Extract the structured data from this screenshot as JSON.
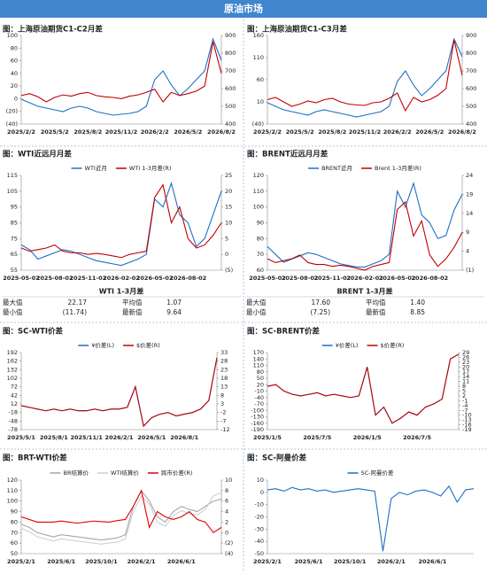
{
  "header": {
    "title": "原油市场"
  },
  "chart_data": [
    {
      "type": "line",
      "title": "图：上海原油期货C1-C2月差",
      "categories": [
        "2025/2/2",
        null,
        null,
        null,
        "2025/5/2",
        null,
        null,
        null,
        "2025/8/2",
        null,
        null,
        null,
        "2025/11/2",
        null,
        null,
        null,
        "2026/2/2",
        null,
        null,
        null,
        "2026/5/2",
        null,
        null,
        null,
        "2026/8/2"
      ],
      "ylim": [
        -40,
        100
      ],
      "yticks": [
        {
          "value": -40,
          "label": "(40)"
        },
        {
          "value": -20,
          "label": "(20)"
        },
        0,
        20,
        40,
        60,
        80,
        100
      ],
      "y2lim": [
        400,
        900
      ],
      "y2ticks": [
        400,
        500,
        600,
        700,
        800,
        900
      ],
      "series": [
        {
          "color": "#1f6fc5",
          "axis": "y2",
          "values": [
            540,
            520,
            500,
            490,
            480,
            470,
            490,
            500,
            490,
            470,
            460,
            450,
            455,
            460,
            470,
            500,
            650,
            700,
            620,
            560,
            600,
            650,
            700,
            880,
            760
          ]
        },
        {
          "color": "#c00000",
          "values": [
            5,
            8,
            3,
            -5,
            2,
            6,
            4,
            8,
            10,
            5,
            3,
            2,
            0,
            4,
            6,
            10,
            15,
            -5,
            10,
            5,
            8,
            12,
            20,
            90,
            40
          ]
        }
      ]
    },
    {
      "type": "line",
      "title": "图：上海原油期货C1-C3月差",
      "categories": [
        "2025/2/2",
        null,
        null,
        null,
        "2025/5/2",
        null,
        null,
        null,
        "2025/8/2",
        null,
        null,
        null,
        "2025/11/2",
        null,
        null,
        null,
        "2026/2/2",
        null,
        null,
        null,
        "2026/5/2",
        null,
        null,
        null,
        "2026/8/2"
      ],
      "ylim": [
        -40,
        160
      ],
      "yticks": [
        {
          "value": -40,
          "label": "(40)"
        },
        10,
        60,
        110,
        160
      ],
      "y2lim": [
        400,
        900
      ],
      "y2ticks": [
        400,
        500,
        600,
        700,
        800,
        900
      ],
      "series": [
        {
          "color": "#1f6fc5",
          "axis": "y2",
          "values": [
            520,
            500,
            480,
            470,
            460,
            450,
            470,
            480,
            470,
            460,
            450,
            440,
            450,
            460,
            470,
            500,
            640,
            700,
            620,
            560,
            600,
            650,
            700,
            880,
            780
          ]
        },
        {
          "color": "#c00000",
          "values": [
            15,
            20,
            10,
            0,
            5,
            12,
            8,
            15,
            18,
            10,
            5,
            3,
            2,
            8,
            10,
            18,
            30,
            -10,
            20,
            10,
            15,
            25,
            40,
            150,
            70
          ]
        }
      ]
    },
    {
      "type": "line",
      "title": "图：WTI近远月月差",
      "categories": [
        "2025-05-02",
        null,
        null,
        null,
        "2025-08-02",
        null,
        null,
        null,
        "2025-11-02",
        null,
        null,
        null,
        "2026-02-02",
        null,
        null,
        null,
        "2026-05-02",
        null,
        null,
        null,
        "2026-08-02",
        null,
        null,
        null,
        null
      ],
      "ylim": [
        55,
        115
      ],
      "yticks": [
        55,
        65,
        75,
        85,
        95,
        105,
        115
      ],
      "y2lim": [
        -5,
        25
      ],
      "y2ticks": [
        {
          "value": -5,
          "label": "(5)"
        },
        0,
        5,
        10,
        15,
        20,
        25
      ],
      "series": [
        {
          "name": "WTI近月",
          "color": "#1f6fc5",
          "values": [
            71,
            68,
            62,
            64,
            66,
            68,
            67,
            65,
            63,
            61,
            60,
            59,
            58,
            60,
            62,
            65,
            100,
            95,
            110,
            90,
            85,
            70,
            75,
            90,
            105
          ]
        },
        {
          "name": "WTI 1-3月差(R)",
          "color": "#c00000",
          "axis": "y2",
          "values": [
            2,
            1,
            1.5,
            2,
            3,
            1,
            0.5,
            0.5,
            0,
            0.3,
            0,
            -0.5,
            -1,
            0,
            0.5,
            1,
            18,
            22,
            10,
            15,
            5,
            2,
            3,
            6,
            10
          ]
        }
      ]
    },
    {
      "type": "line",
      "title": "图：BRENT近远月月差",
      "categories": [
        "2025-05-02",
        null,
        null,
        null,
        "2025-08-02",
        null,
        null,
        null,
        "2025-11-02",
        null,
        null,
        null,
        "2026-02-02",
        null,
        null,
        null,
        "2026-05-02",
        null,
        null,
        null,
        "2026-08-02",
        null,
        null,
        null,
        null
      ],
      "ylim": [
        60,
        120
      ],
      "yticks": [
        60,
        70,
        80,
        90,
        100,
        110,
        120
      ],
      "y2lim": [
        -1,
        24
      ],
      "y2ticks": [
        {
          "value": -1,
          "label": "(1)"
        },
        4,
        9,
        14,
        19,
        24
      ],
      "series": [
        {
          "name": "BRENT近月",
          "color": "#1f6fc5",
          "values": [
            75,
            70,
            65,
            67,
            69,
            71,
            70,
            68,
            66,
            64,
            63,
            62,
            62,
            64,
            66,
            70,
            110,
            100,
            115,
            95,
            90,
            80,
            82,
            98,
            108
          ]
        },
        {
          "name": "Brent 1-3月差(R)",
          "color": "#c00000",
          "axis": "y2",
          "values": [
            2,
            1,
            1.5,
            2,
            3,
            1,
            0.5,
            0.5,
            0,
            0.3,
            0,
            -0.5,
            -1,
            0,
            0.5,
            1,
            15,
            17,
            8,
            12,
            3,
            0,
            2,
            5,
            9
          ]
        }
      ]
    },
    {
      "type": "line",
      "title": "图：SC-WTI价差",
      "categories": [
        "2025/5/1",
        null,
        null,
        null,
        "2025/8/1",
        null,
        null,
        null,
        "2025/11/1",
        null,
        null,
        null,
        "2026/2/1",
        null,
        null,
        null,
        "2026/5/1",
        null,
        null,
        null,
        "2026/8/1",
        null,
        null,
        null,
        null
      ],
      "ylim": [
        -78,
        192
      ],
      "yticks": [
        -78,
        -48,
        -18,
        12,
        42,
        72,
        102,
        132,
        162,
        192
      ],
      "y2lim": [
        -12,
        33
      ],
      "y2ticks": [
        -12,
        -7,
        -2,
        3,
        8,
        13,
        18,
        23,
        28,
        33
      ],
      "series": [
        {
          "name": "¥价差(L)",
          "color": "#1f6fc5",
          "values": [
            6,
            0,
            -6,
            -12,
            -6,
            -12,
            -6,
            -12,
            -12,
            -6,
            -12,
            -6,
            -6,
            0,
            72,
            -66,
            -36,
            -24,
            -18,
            -30,
            -24,
            -18,
            -6,
            24,
            174
          ]
        },
        {
          "name": "$价差(R)",
          "color": "#c00000",
          "axis": "y2",
          "values": [
            2,
            1,
            0,
            -1,
            0,
            -1,
            0,
            -1,
            -1,
            0,
            -1,
            0,
            0,
            1,
            13,
            -10,
            -5,
            -3,
            -2,
            -4,
            -3,
            -2,
            0,
            5,
            30
          ]
        }
      ]
    },
    {
      "type": "line",
      "title": "图：SC-BRENT价差",
      "categories": [
        "2025/1/5",
        null,
        null,
        null,
        null,
        null,
        "2025/7/5",
        null,
        null,
        null,
        null,
        null,
        "2026/1/5",
        null,
        null,
        null,
        null,
        null,
        "2026/7/5",
        null,
        null,
        null,
        null,
        null
      ],
      "ylim": [
        -190,
        170
      ],
      "yticks": [
        -190,
        -160,
        -130,
        -100,
        -70,
        -40,
        -10,
        20,
        50,
        80,
        110,
        140,
        170
      ],
      "y2lim": [
        -19,
        29
      ],
      "y2ticks": [
        -19,
        -16,
        -13,
        -10,
        -7,
        -4,
        -1,
        2,
        5,
        8,
        11,
        14,
        17,
        20,
        23,
        26,
        29
      ],
      "series": [
        {
          "name": "¥价差(L)",
          "color": "#1f6fc5",
          "values": [
            12.5,
            20,
            -10,
            -25,
            -32.5,
            -25,
            -17.5,
            -32.5,
            -25,
            -32.5,
            -40,
            -32.5,
            102.5,
            -122.5,
            -85,
            -160,
            -137.5,
            -107.5,
            -122.5,
            -85,
            -70,
            -47.5,
            140,
            162.5
          ]
        },
        {
          "name": "$价差(R)",
          "color": "#c00000",
          "axis": "y2",
          "values": [
            8,
            9,
            5,
            3,
            2,
            3,
            4,
            2,
            3,
            2,
            1,
            2,
            20,
            -10,
            -5,
            -15,
            -12,
            -8,
            -10,
            -5,
            -3,
            0,
            25,
            28
          ]
        }
      ]
    },
    {
      "type": "line",
      "title": "图：BRT-WTI价差",
      "categories": [
        "2025/2/1",
        null,
        null,
        null,
        null,
        "2025/6/1",
        null,
        null,
        null,
        null,
        "2025/10/1",
        null,
        null,
        null,
        null,
        "2026/2/1",
        null,
        null,
        null,
        null,
        "2026/6/1",
        null,
        null,
        null,
        null,
        null
      ],
      "ylim": [
        50,
        120
      ],
      "yticks": [
        50,
        60,
        70,
        80,
        90,
        100,
        110,
        120
      ],
      "y2lim": [
        -4,
        10
      ],
      "y2ticks": [
        {
          "value": -4,
          "label": "(4)"
        },
        {
          "value": -2,
          "label": "(2)"
        },
        0,
        2,
        4,
        6,
        8,
        10
      ],
      "series": [
        {
          "name": "BR结算价",
          "color": "#a6a6a6",
          "values": [
            78,
            75,
            70,
            68,
            66,
            68,
            67,
            66,
            65,
            64,
            63,
            64,
            65,
            68,
            95,
            110,
            100,
            85,
            80,
            90,
            95,
            92,
            90,
            95,
            100,
            102
          ]
        },
        {
          "name": "WTI结算价",
          "color": "#cfcfcf",
          "values": [
            74,
            71,
            66,
            64,
            62,
            64,
            63,
            62,
            61,
            60,
            59,
            60,
            61,
            64,
            90,
            105,
            97,
            80,
            76,
            86,
            91,
            88,
            87,
            92,
            105,
            108
          ]
        },
        {
          "name": "跨市价差(R)",
          "color": "#e00000",
          "axis": "y2",
          "values": [
            3,
            2.5,
            2,
            2,
            2,
            2.2,
            2,
            1.8,
            2,
            2.2,
            2.1,
            2,
            2.3,
            2.5,
            5,
            8,
            1,
            4,
            3,
            2.5,
            3,
            4,
            2.5,
            2,
            0,
            1
          ]
        }
      ]
    },
    {
      "type": "line",
      "title": "图：SC-阿曼价差",
      "categories": [
        "2025/2/1",
        null,
        null,
        null,
        null,
        "2025/6/1",
        null,
        null,
        null,
        null,
        "2025/10/1",
        null,
        null,
        null,
        null,
        "2026/2/1",
        null,
        null,
        null,
        null,
        "2026/6/1",
        null,
        null,
        null,
        null,
        null
      ],
      "ylim": [
        -50,
        10
      ],
      "yticks": [
        -50,
        -40,
        -30,
        -20,
        -10,
        0,
        10
      ],
      "series": [
        {
          "name": "SC-阿曼价差",
          "color": "#1f6fc5",
          "values": [
            2,
            3,
            1,
            4,
            2,
            3,
            1,
            2,
            0,
            1,
            2,
            3,
            2,
            1,
            -48,
            -5,
            0,
            -2,
            1,
            2,
            0,
            -3,
            5,
            -8,
            2,
            3
          ]
        }
      ]
    }
  ],
  "tables": [
    {
      "title": "WTI 1-3月差",
      "rows": [
        [
          "最大值",
          "22.17",
          "平均值",
          "1.07"
        ],
        [
          "最小值",
          "(11.74)",
          "最新值",
          "9.64"
        ]
      ]
    },
    {
      "title": "BRENT 1-3月差",
      "rows": [
        [
          "最大值",
          "17.60",
          "平均值",
          "1.40"
        ],
        [
          "最小值",
          "(7.25)",
          "最新值",
          "8.85"
        ]
      ]
    }
  ]
}
